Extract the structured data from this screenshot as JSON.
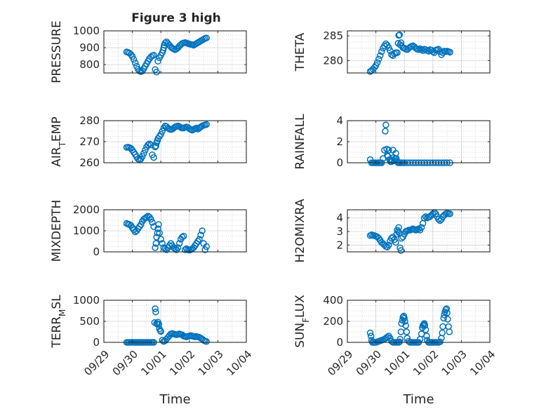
{
  "figure": {
    "title": "Figure 3 high",
    "marker_color": "#0072BD"
  },
  "chart_data": [
    {
      "type": "scatter",
      "ylabel": "PRESSURE",
      "ylim": [
        750,
        1000
      ],
      "yticks": [
        800,
        900,
        1000
      ],
      "xticks": [],
      "xlabel": "",
      "grid": true,
      "x": [
        0.8,
        0.85,
        0.9,
        0.95,
        1.0,
        1.05,
        1.1,
        1.15,
        1.2,
        1.25,
        1.3,
        1.35,
        1.4,
        1.45,
        1.5,
        1.55,
        1.6,
        1.65,
        1.7,
        1.75,
        1.8,
        1.85,
        1.9,
        1.95,
        2.0,
        2.05,
        2.08,
        2.1,
        2.12,
        2.15,
        2.2,
        2.25,
        2.3,
        2.35,
        2.4,
        2.45,
        2.5,
        2.55,
        2.6,
        2.65,
        2.7,
        2.75,
        2.8,
        2.85,
        2.9,
        2.95,
        3.0,
        3.05,
        3.1,
        3.15,
        3.2,
        3.25,
        3.3,
        3.35,
        3.4,
        3.45,
        3.5,
        3.55,
        3.6
      ],
      "y": [
        875,
        872,
        868,
        860,
        848,
        830,
        810,
        790,
        772,
        762,
        758,
        762,
        775,
        790,
        805,
        820,
        835,
        845,
        852,
        855,
        770,
        755,
        820,
        840,
        855,
        870,
        885,
        900,
        915,
        928,
        935,
        925,
        915,
        905,
        898,
        892,
        888,
        893,
        900,
        910,
        918,
        925,
        928,
        930,
        928,
        925,
        922,
        920,
        918,
        915,
        920,
        925,
        930,
        935,
        940,
        945,
        950,
        955,
        958
      ]
    },
    {
      "type": "scatter",
      "ylabel": "THETA",
      "ylim": [
        277.5,
        286
      ],
      "yticks": [
        280,
        285
      ],
      "xticks": [],
      "xlabel": "",
      "grid": true,
      "x": [
        0.8,
        0.85,
        0.9,
        0.95,
        1.0,
        1.05,
        1.1,
        1.15,
        1.2,
        1.25,
        1.3,
        1.35,
        1.4,
        1.45,
        1.5,
        1.55,
        1.6,
        1.65,
        1.7,
        1.75,
        1.78,
        1.8,
        1.83,
        1.85,
        1.88,
        1.9,
        1.95,
        2.0,
        2.05,
        2.1,
        2.15,
        2.2,
        2.25,
        2.3,
        2.35,
        2.4,
        2.45,
        2.5,
        2.55,
        2.6,
        2.65,
        2.7,
        2.75,
        2.8,
        2.85,
        2.9,
        2.95,
        3.0,
        3.05,
        3.1,
        3.15,
        3.2,
        3.25,
        3.3,
        3.35,
        3.4,
        3.45,
        3.5,
        3.55,
        3.6
      ],
      "y": [
        277.8,
        278.0,
        278.3,
        278.6,
        279.0,
        279.6,
        280.3,
        281.0,
        281.8,
        282.5,
        283.0,
        283.4,
        283.1,
        282.6,
        282.0,
        281.2,
        281.0,
        281.4,
        281.6,
        281.6,
        283.5,
        285.1,
        285.2,
        283.2,
        283.6,
        283.0,
        282.6,
        282.5,
        282.3,
        282.2,
        282.5,
        282.7,
        282.9,
        283.0,
        282.8,
        282.5,
        282.3,
        282.2,
        282.4,
        282.2,
        282.0,
        282.3,
        282.2,
        282.0,
        281.9,
        282.2,
        282.1,
        281.8,
        281.6,
        282.1,
        282.2,
        282.3,
        281.8,
        281.2,
        281.6,
        281.9,
        281.8,
        281.9,
        281.8,
        281.7
      ]
    },
    {
      "type": "scatter",
      "ylabel": "AIR_TEMP",
      "ylim": [
        260,
        280
      ],
      "yticks": [
        260,
        270,
        280
      ],
      "xticks": [],
      "xlabel": "",
      "grid": true,
      "x": [
        0.8,
        0.85,
        0.9,
        0.95,
        1.0,
        1.05,
        1.1,
        1.15,
        1.2,
        1.25,
        1.3,
        1.35,
        1.4,
        1.45,
        1.5,
        1.55,
        1.6,
        1.65,
        1.7,
        1.75,
        1.8,
        1.83,
        1.85,
        1.88,
        1.9,
        1.95,
        2.0,
        2.05,
        2.1,
        2.15,
        2.2,
        2.25,
        2.3,
        2.35,
        2.4,
        2.45,
        2.5,
        2.55,
        2.6,
        2.65,
        2.7,
        2.75,
        2.8,
        2.85,
        2.9,
        2.95,
        3.0,
        3.05,
        3.1,
        3.15,
        3.2,
        3.25,
        3.3,
        3.35,
        3.4,
        3.45,
        3.5,
        3.55,
        3.6
      ],
      "y": [
        267.3,
        267.4,
        267.2,
        266.8,
        266.0,
        265.0,
        264.0,
        262.8,
        261.8,
        261.5,
        261.8,
        263.0,
        264.5,
        266.0,
        267.5,
        268.5,
        269.0,
        268.5,
        263.8,
        262.5,
        267.5,
        268.0,
        269.5,
        270.5,
        271.5,
        272.5,
        273.5,
        275.0,
        276.5,
        277.5,
        277.2,
        276.5,
        276.0,
        275.8,
        276.0,
        276.5,
        277.0,
        277.3,
        277.5,
        277.2,
        276.8,
        276.5,
        276.5,
        276.8,
        277.0,
        276.8,
        276.2,
        275.8,
        275.5,
        275.8,
        276.2,
        276.5,
        276.0,
        276.5,
        277.0,
        277.5,
        277.8,
        278.0,
        278.2
      ]
    },
    {
      "type": "scatter",
      "ylabel": "RAINFALL",
      "ylim": [
        0,
        4
      ],
      "yticks": [
        0,
        2,
        4
      ],
      "xticks": [],
      "xlabel": "",
      "grid": true,
      "x": [
        0.8,
        0.85,
        0.9,
        0.95,
        1.0,
        1.05,
        1.1,
        1.15,
        1.2,
        1.25,
        1.3,
        1.33,
        1.35,
        1.38,
        1.4,
        1.42,
        1.45,
        1.48,
        1.5,
        1.52,
        1.55,
        1.58,
        1.6,
        1.62,
        1.65,
        1.68,
        1.7,
        1.72,
        1.75,
        1.78,
        1.8,
        1.85,
        1.9,
        1.95,
        2.0,
        2.1,
        2.2,
        2.3,
        2.4,
        2.5,
        2.6,
        2.7,
        2.8,
        2.9,
        3.0,
        3.1,
        3.2,
        3.3,
        3.4,
        3.5,
        3.6
      ],
      "y": [
        0.3,
        0.0,
        0.0,
        0.0,
        0.0,
        0.0,
        0.0,
        0.0,
        0.0,
        0.4,
        1.2,
        3.0,
        3.6,
        1.3,
        0.7,
        0.6,
        1.2,
        0.3,
        0.3,
        0.1,
        0.1,
        0.2,
        1.2,
        0.5,
        0.2,
        0.4,
        0.9,
        0.4,
        0.1,
        0.0,
        0.0,
        0.0,
        0.0,
        0.0,
        0.0,
        0.0,
        0.0,
        0.0,
        0.0,
        0.0,
        0.0,
        0.0,
        0.0,
        0.0,
        0.0,
        0.0,
        0.0,
        0.0,
        0.0,
        0.0,
        0.0
      ]
    },
    {
      "type": "scatter",
      "ylabel": "MIXDEPTH",
      "ylim": [
        0,
        2000
      ],
      "yticks": [
        0,
        1000,
        2000
      ],
      "xticks": [],
      "xlabel": "",
      "grid": true,
      "x": [
        0.8,
        0.85,
        0.9,
        0.95,
        1.0,
        1.05,
        1.1,
        1.15,
        1.2,
        1.25,
        1.3,
        1.35,
        1.4,
        1.45,
        1.5,
        1.55,
        1.6,
        1.65,
        1.7,
        1.75,
        1.8,
        1.83,
        1.85,
        1.88,
        1.9,
        1.92,
        1.95,
        2.0,
        2.05,
        2.1,
        2.15,
        2.2,
        2.25,
        2.3,
        2.35,
        2.4,
        2.45,
        2.5,
        2.55,
        2.6,
        2.65,
        2.7,
        2.75,
        2.8,
        2.85,
        2.9,
        2.95,
        3.0,
        3.05,
        3.1,
        3.15,
        3.2,
        3.25,
        3.3,
        3.35,
        3.4,
        3.45,
        3.5,
        3.55,
        3.6
      ],
      "y": [
        1350,
        1320,
        1300,
        1250,
        1150,
        1050,
        950,
        1000,
        1100,
        1200,
        1300,
        1450,
        1550,
        1600,
        1650,
        1700,
        1650,
        1550,
        1400,
        1200,
        200,
        400,
        700,
        900,
        1100,
        1300,
        900,
        600,
        400,
        200,
        150,
        100,
        200,
        300,
        400,
        300,
        200,
        150,
        100,
        200,
        400,
        600,
        700,
        750,
        100,
        150,
        100,
        80,
        100,
        150,
        200,
        300,
        400,
        500,
        600,
        800,
        1000,
        400,
        100,
        250
      ]
    },
    {
      "type": "scatter",
      "ylabel": "H2OMIXRA",
      "ylim": [
        1.5,
        4.6
      ],
      "yticks": [
        2,
        3,
        4
      ],
      "xticks": [],
      "xlabel": "",
      "grid": true,
      "x": [
        0.8,
        0.85,
        0.9,
        0.95,
        1.0,
        1.05,
        1.1,
        1.15,
        1.2,
        1.25,
        1.3,
        1.35,
        1.4,
        1.45,
        1.5,
        1.55,
        1.6,
        1.65,
        1.7,
        1.73,
        1.75,
        1.78,
        1.8,
        1.82,
        1.85,
        1.88,
        1.9,
        1.95,
        2.0,
        2.05,
        2.1,
        2.15,
        2.2,
        2.25,
        2.3,
        2.35,
        2.4,
        2.45,
        2.5,
        2.55,
        2.6,
        2.65,
        2.7,
        2.75,
        2.8,
        2.85,
        2.9,
        2.95,
        3.0,
        3.05,
        3.1,
        3.15,
        3.2,
        3.25,
        3.3,
        3.35,
        3.4,
        3.45,
        3.5,
        3.55,
        3.6
      ],
      "y": [
        2.7,
        2.75,
        2.7,
        2.7,
        2.65,
        2.6,
        2.5,
        2.35,
        2.2,
        2.1,
        2.0,
        1.9,
        1.85,
        2.0,
        2.3,
        2.5,
        2.6,
        2.4,
        2.2,
        2.8,
        3.1,
        3.0,
        3.3,
        2.9,
        1.8,
        1.6,
        2.5,
        2.6,
        2.8,
        3.0,
        3.05,
        3.1,
        3.1,
        3.15,
        3.2,
        3.15,
        3.1,
        3.15,
        3.2,
        3.1,
        3.3,
        3.6,
        4.0,
        4.1,
        4.0,
        4.05,
        4.1,
        4.2,
        4.3,
        4.4,
        4.3,
        4.1,
        3.9,
        3.8,
        3.9,
        4.1,
        4.2,
        4.3,
        4.35,
        4.3,
        4.3
      ]
    },
    {
      "type": "scatter",
      "ylabel": "TERR_MSL",
      "ylim": [
        0,
        1000
      ],
      "yticks": [
        0,
        500,
        1000
      ],
      "xticks": [
        "09/29",
        "09/30",
        "10/01",
        "10/02",
        "10/03",
        "10/04"
      ],
      "xlabel": "Time",
      "grid": true,
      "x": [
        0.8,
        0.85,
        0.9,
        0.95,
        1.0,
        1.05,
        1.1,
        1.15,
        1.2,
        1.25,
        1.3,
        1.35,
        1.4,
        1.45,
        1.5,
        1.55,
        1.6,
        1.65,
        1.7,
        1.75,
        1.78,
        1.8,
        1.82,
        1.85,
        1.88,
        1.9,
        1.93,
        1.95,
        1.98,
        2.0,
        2.05,
        2.1,
        2.15,
        2.2,
        2.25,
        2.3,
        2.35,
        2.4,
        2.45,
        2.5,
        2.55,
        2.6,
        2.65,
        2.7,
        2.75,
        2.8,
        2.85,
        2.9,
        2.95,
        3.0,
        3.05,
        3.1,
        3.15,
        3.2,
        3.25,
        3.3,
        3.35,
        3.4,
        3.45,
        3.5,
        3.55,
        3.6
      ],
      "y": [
        0,
        0,
        0,
        0,
        0,
        0,
        0,
        0,
        0,
        0,
        0,
        0,
        0,
        0,
        0,
        0,
        0,
        0,
        0,
        0,
        470,
        800,
        720,
        450,
        430,
        480,
        430,
        320,
        280,
        260,
        50,
        20,
        40,
        80,
        120,
        160,
        200,
        210,
        200,
        190,
        180,
        190,
        200,
        190,
        180,
        150,
        140,
        130,
        140,
        150,
        160,
        150,
        140,
        130,
        140,
        130,
        120,
        100,
        80,
        50,
        30,
        20
      ]
    },
    {
      "type": "scatter",
      "ylabel": "SUN_FLUX",
      "ylim": [
        0,
        400
      ],
      "yticks": [
        0,
        200,
        400
      ],
      "xticks": [
        "09/29",
        "09/30",
        "10/01",
        "10/02",
        "10/03",
        "10/04"
      ],
      "xlabel": "Time",
      "grid": true,
      "x": [
        0.8,
        0.83,
        0.85,
        0.88,
        0.9,
        0.95,
        1.0,
        1.05,
        1.1,
        1.15,
        1.2,
        1.25,
        1.3,
        1.35,
        1.4,
        1.45,
        1.5,
        1.55,
        1.6,
        1.65,
        1.7,
        1.75,
        1.8,
        1.83,
        1.85,
        1.88,
        1.9,
        1.93,
        1.95,
        1.98,
        2.0,
        2.02,
        2.05,
        2.08,
        2.1,
        2.15,
        2.2,
        2.25,
        2.3,
        2.35,
        2.4,
        2.45,
        2.5,
        2.55,
        2.6,
        2.63,
        2.65,
        2.68,
        2.7,
        2.72,
        2.75,
        2.78,
        2.8,
        2.85,
        2.9,
        2.95,
        3.0,
        3.05,
        3.1,
        3.15,
        3.2,
        3.25,
        3.3,
        3.33,
        3.35,
        3.38,
        3.4,
        3.42,
        3.45,
        3.48,
        3.5,
        3.52,
        3.55,
        3.58
      ],
      "y": [
        90,
        60,
        20,
        0,
        0,
        0,
        0,
        5,
        10,
        15,
        20,
        25,
        30,
        40,
        50,
        60,
        40,
        10,
        0,
        0,
        0,
        0,
        0,
        5,
        30,
        100,
        180,
        210,
        240,
        250,
        230,
        200,
        160,
        100,
        40,
        10,
        0,
        0,
        0,
        0,
        0,
        0,
        0,
        30,
        80,
        140,
        160,
        170,
        180,
        160,
        120,
        60,
        20,
        0,
        0,
        0,
        0,
        0,
        0,
        0,
        0,
        5,
        40,
        90,
        150,
        230,
        260,
        290,
        310,
        320,
        280,
        220,
        150,
        100
      ]
    }
  ]
}
